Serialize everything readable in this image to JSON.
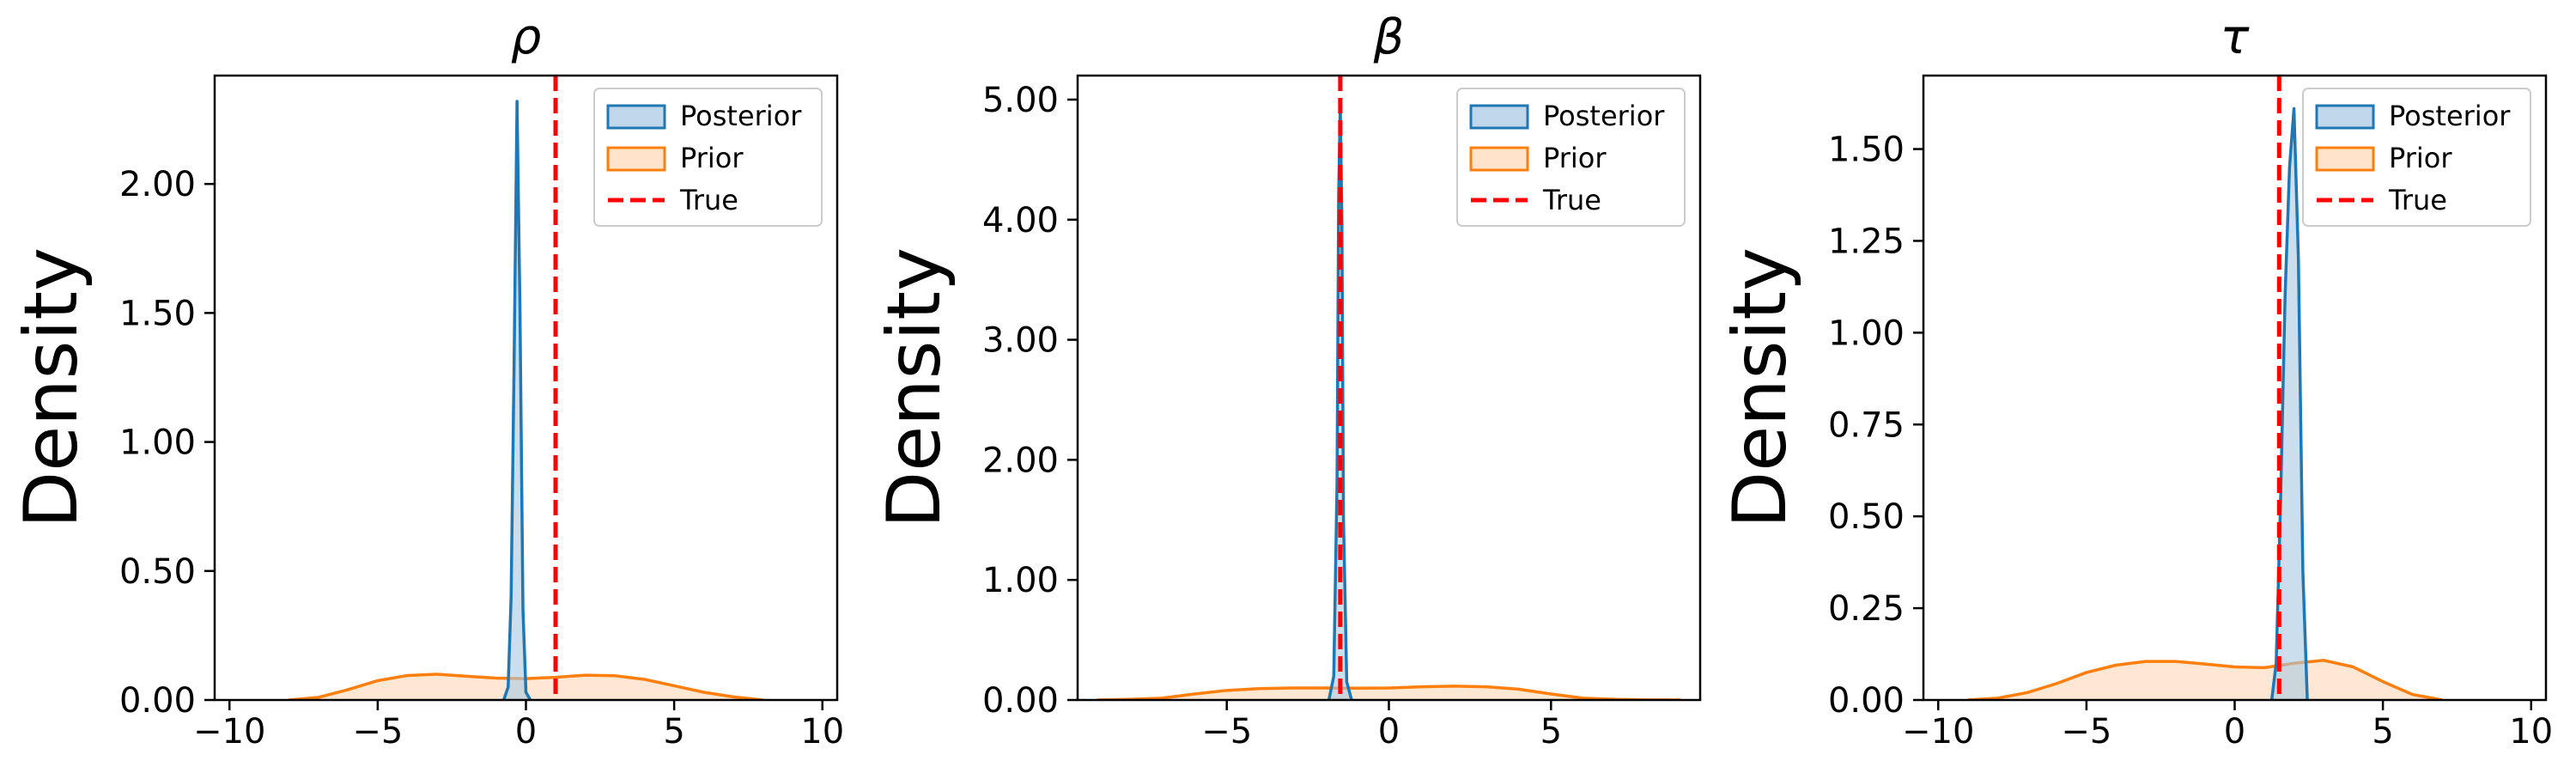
{
  "chart_data": [
    {
      "type": "area",
      "title": "ρ",
      "title_style": "italic",
      "xlabel": "",
      "ylabel": "Density",
      "xlim": [
        -10.5,
        10.5
      ],
      "ylim": [
        0,
        2.42
      ],
      "xticks": [
        -10,
        -5,
        0,
        5,
        10
      ],
      "xtick_labels": [
        "−10",
        "−5",
        "0",
        "5",
        "10"
      ],
      "yticks": [
        0,
        0.5,
        1.0,
        1.5,
        2.0
      ],
      "ytick_labels": [
        "0.00",
        "0.50",
        "1.00",
        "1.50",
        "2.00"
      ],
      "true_value": 1.0,
      "legend": {
        "position": "top-right",
        "entries": [
          "Posterior",
          "Prior",
          "True"
        ]
      },
      "series": [
        {
          "name": "Posterior",
          "color": "#1f77b4",
          "fill": "#a6c8e3",
          "x": [
            -0.75,
            -0.6,
            -0.5,
            -0.4,
            -0.3,
            -0.2,
            -0.1,
            0.0,
            0.15
          ],
          "y": [
            0,
            0.05,
            0.4,
            1.3,
            2.32,
            1.5,
            0.35,
            0.03,
            0
          ]
        },
        {
          "name": "Prior",
          "color": "#ff7f0e",
          "fill": "#ffd8b5",
          "x": [
            -8,
            -7,
            -6,
            -5,
            -4,
            -3,
            -2,
            -1,
            0,
            1,
            2,
            3,
            4,
            5,
            6,
            7,
            8
          ],
          "y": [
            0,
            0.01,
            0.04,
            0.075,
            0.095,
            0.1,
            0.092,
            0.085,
            0.083,
            0.088,
            0.096,
            0.094,
            0.08,
            0.055,
            0.03,
            0.012,
            0
          ]
        }
      ]
    },
    {
      "type": "area",
      "title": "β",
      "title_style": "italic",
      "xlabel": "",
      "ylabel": "Density",
      "xlim": [
        -9.6,
        9.6
      ],
      "ylim": [
        0,
        5.2
      ],
      "xticks": [
        -5,
        0,
        5
      ],
      "xtick_labels": [
        "−5",
        "0",
        "5"
      ],
      "yticks": [
        0,
        1,
        2,
        3,
        4,
        5
      ],
      "ytick_labels": [
        "0.00",
        "1.00",
        "2.00",
        "3.00",
        "4.00",
        "5.00"
      ],
      "true_value": -1.5,
      "legend": {
        "position": "top-right",
        "entries": [
          "Posterior",
          "Prior",
          "True"
        ]
      },
      "series": [
        {
          "name": "Posterior",
          "color": "#1f77b4",
          "fill": "#a6c8e3",
          "x": [
            -1.85,
            -1.7,
            -1.6,
            -1.55,
            -1.5,
            -1.45,
            -1.4,
            -1.3,
            -1.15
          ],
          "y": [
            0,
            0.2,
            1.8,
            4.2,
            4.95,
            4.0,
            1.5,
            0.15,
            0
          ]
        },
        {
          "name": "Prior",
          "color": "#ff7f0e",
          "fill": "#ffd8b5",
          "x": [
            -9,
            -8,
            -7,
            -6,
            -5,
            -4,
            -3,
            -2,
            -1,
            0,
            1,
            2,
            3,
            4,
            5,
            6,
            7,
            8,
            9
          ],
          "y": [
            0,
            0.005,
            0.015,
            0.05,
            0.08,
            0.095,
            0.1,
            0.1,
            0.098,
            0.1,
            0.11,
            0.115,
            0.11,
            0.09,
            0.05,
            0.015,
            0.005,
            0.001,
            0
          ]
        }
      ]
    },
    {
      "type": "area",
      "title": "τ",
      "title_style": "italic",
      "xlabel": "",
      "ylabel": "Density",
      "xlim": [
        -10.5,
        10.5
      ],
      "ylim": [
        0,
        1.7
      ],
      "xticks": [
        -10,
        -5,
        0,
        5,
        10
      ],
      "xtick_labels": [
        "−10",
        "−5",
        "0",
        "5",
        "10"
      ],
      "yticks": [
        0,
        0.25,
        0.5,
        0.75,
        1.0,
        1.25,
        1.5
      ],
      "ytick_labels": [
        "0.00",
        "0.25",
        "0.50",
        "0.75",
        "1.00",
        "1.25",
        "1.50"
      ],
      "true_value": 1.5,
      "legend": {
        "position": "top-right",
        "entries": [
          "Posterior",
          "Prior",
          "True"
        ]
      },
      "series": [
        {
          "name": "Posterior",
          "color": "#1f77b4",
          "fill": "#a6c8e3",
          "x": [
            1.25,
            1.4,
            1.55,
            1.7,
            1.85,
            2.0,
            2.15,
            2.3,
            2.45
          ],
          "y": [
            0,
            0.1,
            0.55,
            1.1,
            1.45,
            1.61,
            1.2,
            0.35,
            0
          ]
        },
        {
          "name": "Prior",
          "color": "#ff7f0e",
          "fill": "#ffd8b5",
          "x": [
            -9,
            -8,
            -7,
            -6,
            -5,
            -4,
            -3,
            -2,
            -1,
            0,
            1,
            2,
            3,
            4,
            5,
            6,
            7
          ],
          "y": [
            0,
            0.005,
            0.02,
            0.045,
            0.075,
            0.095,
            0.105,
            0.105,
            0.098,
            0.09,
            0.088,
            0.1,
            0.108,
            0.09,
            0.05,
            0.015,
            0
          ]
        }
      ]
    }
  ]
}
